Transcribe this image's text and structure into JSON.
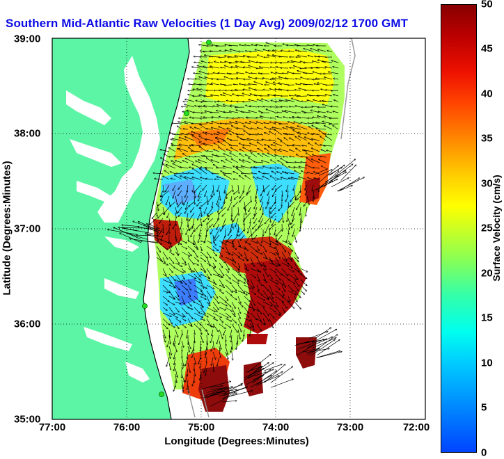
{
  "title": "Southern Mid-Atlantic Raw Velocities (1 Day Avg) 2009/02/12 1700 GMT",
  "x_axis": {
    "label": "Longitude (Degrees:Minutes)",
    "ticks": [
      "77:00",
      "76:00",
      "75:00",
      "74:00",
      "73:00",
      "72:00"
    ]
  },
  "y_axis": {
    "label": "Latitude (Degrees:Minutes)",
    "ticks": [
      "39:00",
      "38:00",
      "37:00",
      "36:00",
      "35:00"
    ]
  },
  "colorbar": {
    "label": "Surface Velocity (cm/s)",
    "ticks": [
      "50",
      "45",
      "40",
      "35",
      "30",
      "25",
      "20",
      "15",
      "10",
      "5",
      "0"
    ],
    "range": [
      0,
      50
    ]
  },
  "colors": {
    "land": "#5cf5a5",
    "water": "#ffffff",
    "title": "#0a0ae6",
    "station": "#22dd22"
  },
  "icons": {
    "station_marker": "green-circle"
  }
}
